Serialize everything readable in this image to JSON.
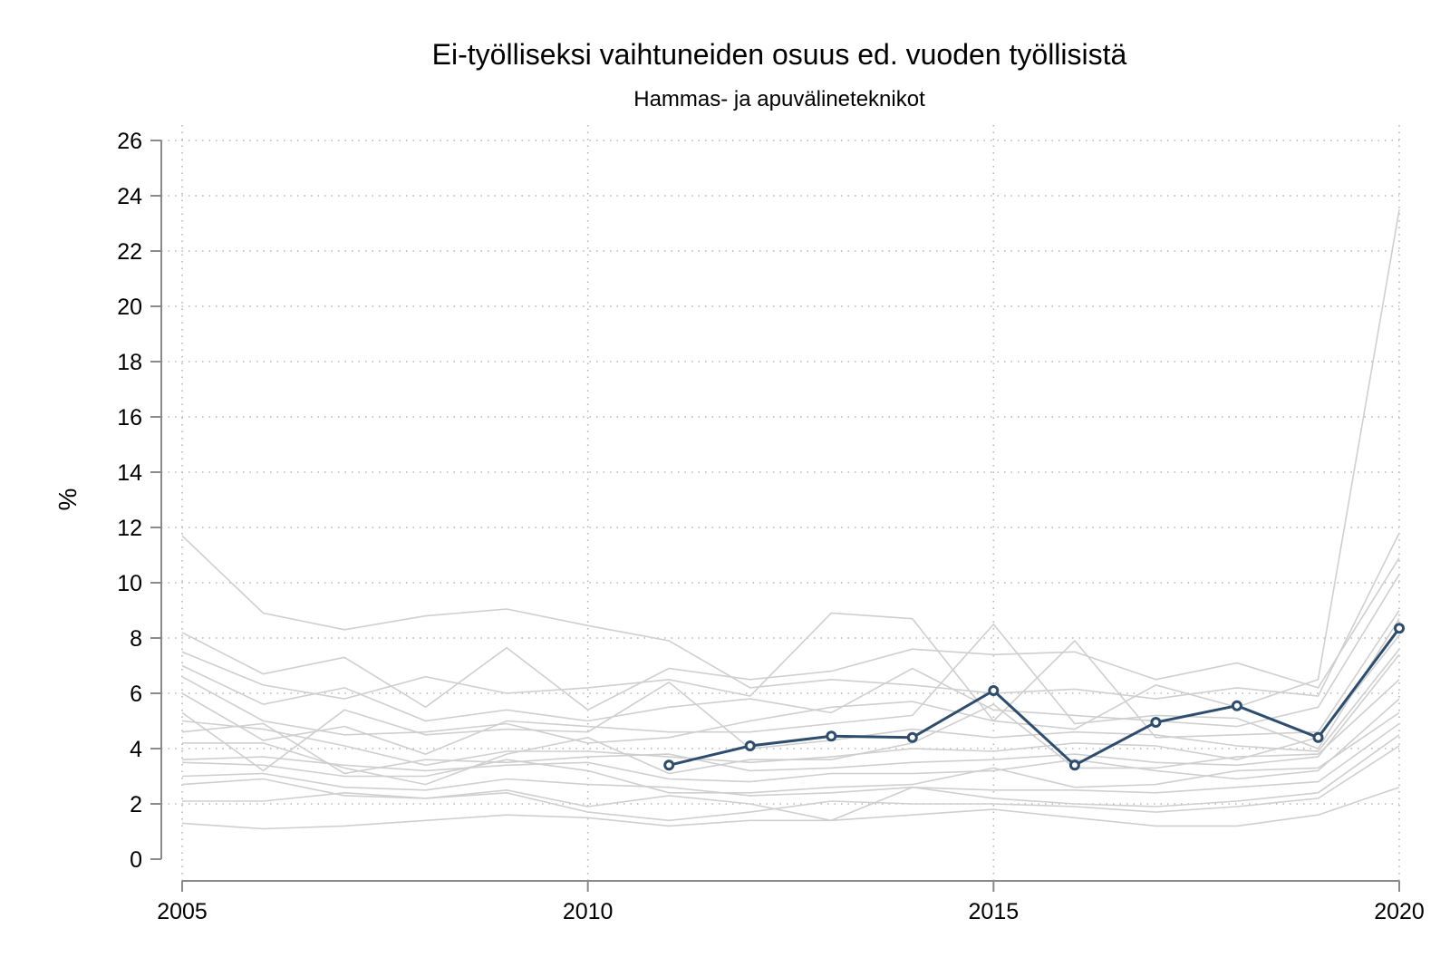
{
  "chart_data": {
    "type": "line",
    "title": "Ei-työlliseksi vaihtuneiden osuus ed. vuoden työllisistä",
    "subtitle": "Hammas- ja apuvälineteknikot",
    "ylabel": "%",
    "xlabel": "",
    "xlim": [
      2005,
      2020
    ],
    "ylim": [
      0,
      26
    ],
    "x_ticks": [
      "2005",
      "2010",
      "2015",
      "2020"
    ],
    "y_ticks": [
      "0",
      "2",
      "4",
      "6",
      "8",
      "10",
      "12",
      "14",
      "16",
      "18",
      "20",
      "22",
      "24",
      "26"
    ],
    "grid": true,
    "x": [
      2005,
      2006,
      2007,
      2008,
      2009,
      2010,
      2011,
      2012,
      2013,
      2014,
      2015,
      2016,
      2017,
      2018,
      2019,
      2020
    ],
    "colors": {
      "highlight": "#2e4d6e",
      "background": "#cfcfcf",
      "grid": "#b5b5b5",
      "axis": "#8a8a8a"
    },
    "highlight_series": {
      "x": [
        2011,
        2012,
        2013,
        2014,
        2015,
        2016,
        2017,
        2018,
        2019,
        2020
      ],
      "values": [
        3.4,
        4.1,
        4.45,
        4.4,
        6.1,
        3.4,
        4.95,
        5.55,
        4.4,
        8.35
      ]
    },
    "background_series": [
      {
        "values": [
          11.7,
          8.9,
          8.3,
          8.8,
          9.05,
          8.45,
          7.9,
          6.2,
          6.5,
          6.3,
          6.0,
          6.15,
          5.8,
          6.2,
          5.9,
          11.8
        ]
      },
      {
        "values": [
          8.2,
          6.7,
          7.3,
          5.5,
          7.65,
          5.4,
          6.9,
          6.5,
          6.8,
          7.6,
          7.4,
          7.5,
          6.5,
          7.1,
          6.2,
          10.9
        ]
      },
      {
        "values": [
          7.5,
          6.3,
          5.8,
          6.6,
          6.0,
          6.2,
          6.5,
          5.9,
          8.9,
          8.7,
          5.0,
          4.7,
          6.3,
          5.5,
          6.5,
          23.5
        ]
      },
      {
        "values": [
          7.0,
          5.6,
          6.2,
          5.0,
          5.4,
          5.0,
          5.5,
          5.8,
          5.3,
          6.9,
          5.4,
          5.2,
          5.0,
          4.8,
          5.5,
          10.3
        ]
      },
      {
        "values": [
          6.6,
          5.0,
          4.5,
          4.6,
          4.9,
          4.2,
          4.4,
          5.0,
          5.5,
          5.7,
          5.0,
          7.9,
          4.4,
          4.5,
          4.6,
          9.0
        ]
      },
      {
        "values": [
          6.0,
          4.3,
          4.8,
          3.8,
          5.0,
          4.8,
          4.6,
          4.6,
          4.9,
          5.2,
          8.5,
          4.9,
          5.2,
          5.1,
          4.0,
          8.7
        ]
      },
      {
        "values": [
          5.3,
          3.2,
          5.4,
          4.5,
          4.7,
          4.6,
          6.4,
          4.0,
          4.3,
          4.7,
          4.4,
          4.6,
          4.5,
          4.1,
          3.9,
          7.6
        ]
      },
      {
        "values": [
          5.0,
          4.7,
          4.1,
          3.4,
          3.9,
          3.9,
          3.7,
          3.5,
          3.7,
          4.0,
          3.9,
          4.2,
          4.1,
          3.6,
          4.4,
          8.1
        ]
      },
      {
        "values": [
          4.6,
          4.9,
          3.1,
          3.6,
          3.5,
          3.7,
          3.8,
          3.2,
          3.3,
          3.5,
          3.6,
          3.8,
          3.5,
          3.4,
          3.7,
          7.4
        ]
      },
      {
        "values": [
          4.2,
          4.2,
          3.3,
          2.7,
          3.8,
          4.4,
          3.1,
          3.6,
          3.6,
          4.2,
          5.6,
          3.3,
          3.3,
          3.7,
          3.8,
          6.5
        ]
      },
      {
        "values": [
          3.6,
          3.7,
          3.4,
          3.2,
          3.4,
          3.5,
          2.9,
          2.8,
          3.1,
          3.1,
          3.2,
          3.6,
          3.2,
          2.9,
          3.2,
          5.8
        ]
      },
      {
        "values": [
          3.5,
          3.4,
          3.0,
          3.0,
          3.6,
          3.2,
          2.4,
          2.4,
          2.6,
          2.7,
          3.3,
          2.6,
          2.7,
          3.2,
          3.3,
          5.3
        ]
      },
      {
        "values": [
          3.0,
          3.1,
          2.6,
          2.5,
          2.9,
          2.7,
          2.6,
          2.3,
          2.4,
          2.6,
          2.5,
          2.5,
          2.4,
          2.6,
          2.8,
          4.9
        ]
      },
      {
        "values": [
          2.7,
          2.9,
          2.3,
          2.2,
          2.5,
          1.9,
          2.3,
          2.0,
          1.4,
          2.6,
          2.2,
          2.0,
          1.9,
          2.1,
          2.4,
          4.5
        ]
      },
      {
        "values": [
          2.1,
          2.1,
          2.4,
          2.2,
          2.4,
          1.7,
          1.4,
          1.7,
          2.1,
          2.0,
          2.0,
          1.9,
          1.7,
          1.9,
          2.2,
          4.1
        ]
      },
      {
        "values": [
          1.3,
          1.1,
          1.2,
          1.4,
          1.6,
          1.5,
          1.2,
          1.4,
          1.4,
          1.6,
          1.8,
          1.5,
          1.2,
          1.2,
          1.6,
          2.6
        ]
      }
    ]
  }
}
